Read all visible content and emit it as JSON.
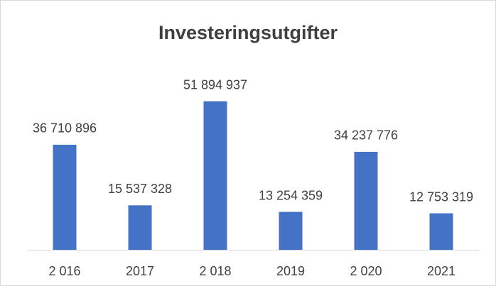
{
  "chart_data": {
    "type": "bar",
    "title": "Investeringsutgifter",
    "categories": [
      "2 016",
      "2017",
      "2 018",
      "2019",
      "2 020",
      "2021"
    ],
    "values": [
      36710896,
      15537328,
      51894937,
      13254359,
      34237776,
      12753319
    ],
    "value_labels": [
      "36 710 896",
      "15 537 328",
      "51 894 937",
      "13 254 359",
      "34 237 776",
      "12 753 319"
    ],
    "color": "#4472c4",
    "ylim": [
      0,
      60000000
    ],
    "grid": false
  }
}
